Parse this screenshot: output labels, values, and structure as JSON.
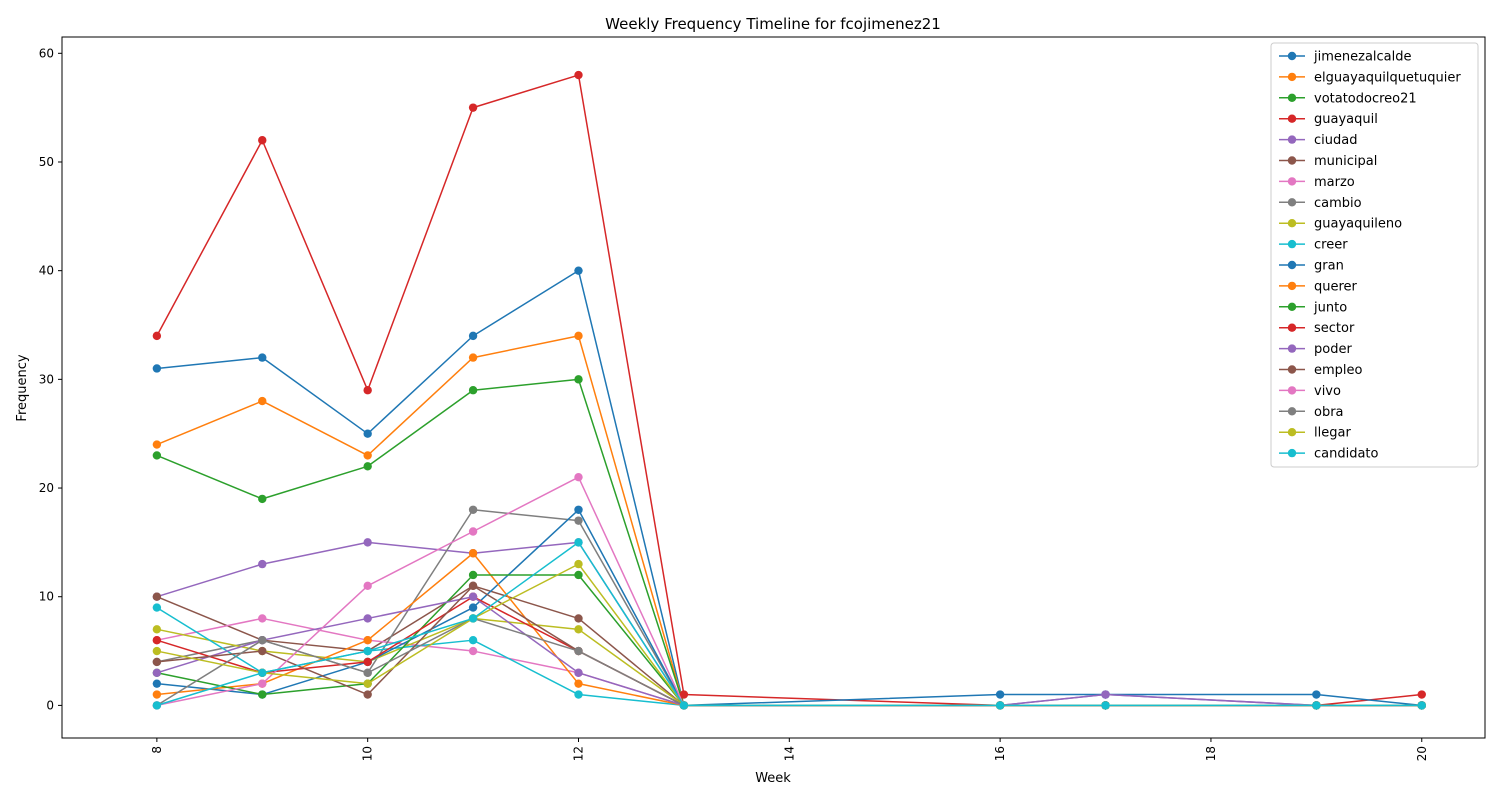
{
  "chart_data": {
    "type": "line",
    "title": "Weekly Frequency Timeline for fcojimenez21",
    "xlabel": "Week",
    "ylabel": "Frequency",
    "xlim": [
      7.1,
      20.6
    ],
    "ylim": [
      -3,
      61.5
    ],
    "xticks": [
      8,
      10,
      12,
      14,
      16,
      18,
      20
    ],
    "yticks": [
      0,
      10,
      20,
      30,
      40,
      50,
      60
    ],
    "legend_position": "top-right",
    "x": [
      8,
      9,
      10,
      11,
      12,
      13,
      16,
      17,
      19,
      20
    ],
    "series": [
      {
        "name": "jimenezalcalde",
        "color": "#1f77b4",
        "values": [
          31,
          32,
          25,
          34,
          40,
          0,
          0,
          0,
          0,
          0
        ]
      },
      {
        "name": "elguayaquilquetuquier",
        "color": "#ff7f0e",
        "values": [
          24,
          28,
          23,
          32,
          34,
          0,
          0,
          0,
          0,
          0
        ]
      },
      {
        "name": "votatodocreo21",
        "color": "#2ca02c",
        "values": [
          23,
          19,
          22,
          29,
          30,
          0,
          0,
          0,
          0,
          0
        ]
      },
      {
        "name": "guayaquil",
        "color": "#d62728",
        "values": [
          34,
          52,
          29,
          55,
          58,
          1,
          0,
          0,
          0,
          1
        ]
      },
      {
        "name": "ciudad",
        "color": "#9467bd",
        "values": [
          10,
          13,
          15,
          14,
          15,
          0,
          0,
          1,
          0,
          0
        ]
      },
      {
        "name": "municipal",
        "color": "#8c564b",
        "values": [
          10,
          6,
          5,
          11,
          8,
          0,
          0,
          0,
          0,
          0
        ]
      },
      {
        "name": "marzo",
        "color": "#e377c2",
        "values": [
          6,
          8,
          6,
          5,
          3,
          0,
          0,
          0,
          0,
          0
        ]
      },
      {
        "name": "cambio",
        "color": "#7f7f7f",
        "values": [
          4,
          6,
          3,
          18,
          17,
          0,
          0,
          0,
          0,
          0
        ]
      },
      {
        "name": "guayaquileno",
        "color": "#bcbd22",
        "values": [
          7,
          5,
          4,
          8,
          7,
          0,
          0,
          0,
          0,
          0
        ]
      },
      {
        "name": "creer",
        "color": "#17becf",
        "values": [
          9,
          3,
          5,
          6,
          1,
          0,
          0,
          0,
          0,
          0
        ]
      },
      {
        "name": "gran",
        "color": "#1f77b4",
        "values": [
          2,
          1,
          4,
          9,
          18,
          0,
          1,
          1,
          1,
          0
        ]
      },
      {
        "name": "querer",
        "color": "#ff7f0e",
        "values": [
          1,
          2,
          6,
          14,
          2,
          0,
          0,
          0,
          0,
          0
        ]
      },
      {
        "name": "junto",
        "color": "#2ca02c",
        "values": [
          3,
          1,
          2,
          12,
          12,
          0,
          0,
          0,
          0,
          0
        ]
      },
      {
        "name": "sector",
        "color": "#d62728",
        "values": [
          6,
          3,
          4,
          10,
          5,
          0,
          0,
          0,
          0,
          0
        ]
      },
      {
        "name": "poder",
        "color": "#9467bd",
        "values": [
          3,
          6,
          8,
          10,
          3,
          0,
          0,
          1,
          0,
          0
        ]
      },
      {
        "name": "empleo",
        "color": "#8c564b",
        "values": [
          4,
          5,
          1,
          11,
          5,
          0,
          0,
          0,
          0,
          0
        ]
      },
      {
        "name": "vivo",
        "color": "#e377c2",
        "values": [
          0,
          2,
          11,
          16,
          21,
          0,
          0,
          0,
          0,
          0
        ]
      },
      {
        "name": "obra",
        "color": "#7f7f7f",
        "values": [
          0,
          6,
          3,
          8,
          5,
          0,
          0,
          0,
          0,
          0
        ]
      },
      {
        "name": "llegar",
        "color": "#bcbd22",
        "values": [
          5,
          3,
          2,
          8,
          13,
          0,
          0,
          0,
          0,
          0
        ]
      },
      {
        "name": "candidato",
        "color": "#17becf",
        "values": [
          0,
          3,
          5,
          8,
          15,
          0,
          0,
          0,
          0,
          0
        ]
      }
    ]
  }
}
